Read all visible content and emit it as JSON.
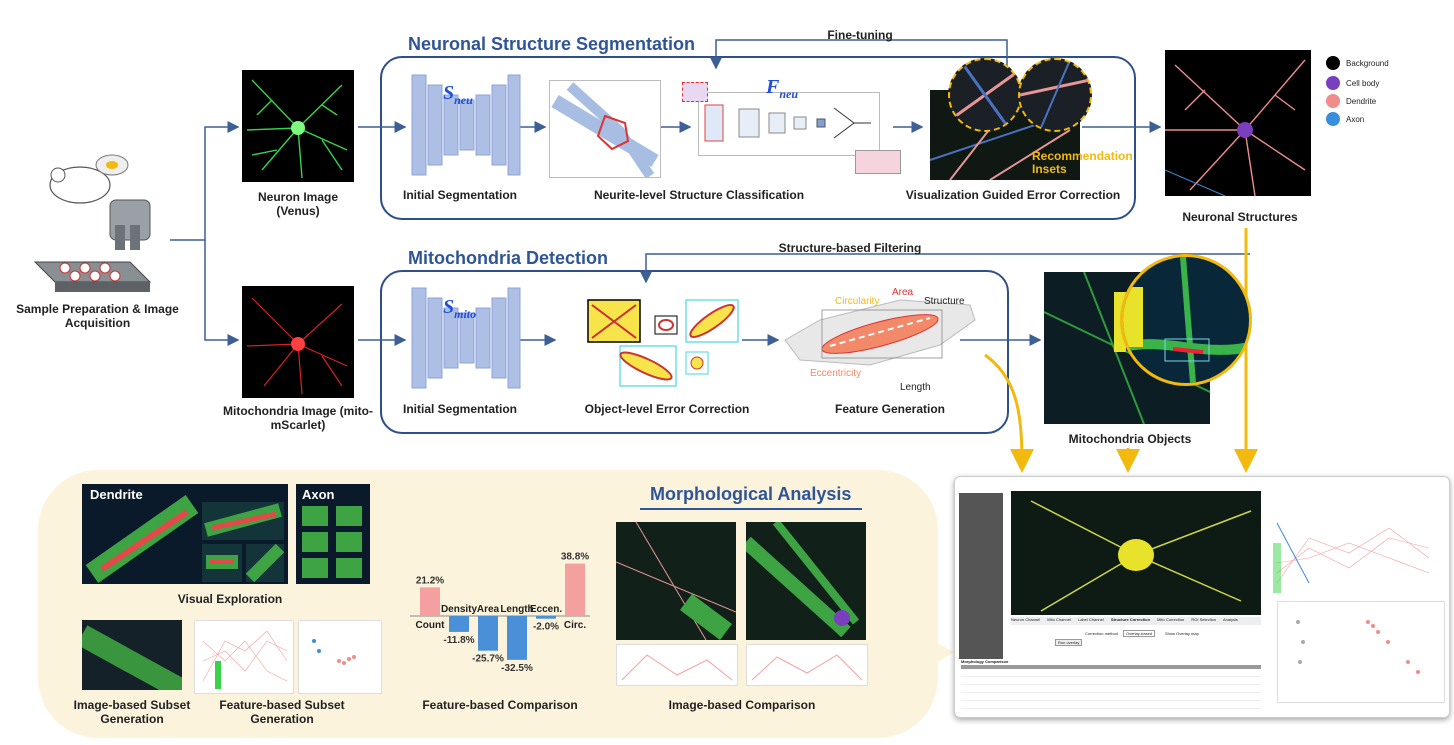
{
  "stage1": {
    "sample_label": "Sample Preparation & Image Acquisition",
    "neuron_image_label": "Neuron Image (Venus)",
    "mito_image_label": "Mitochondria Image (mito-mScarlet)"
  },
  "pipeline_top": {
    "title": "Neuronal Structure Segmentation",
    "feedback_label": "Fine-tuning",
    "model_symbol": "S",
    "model_sub": "neu",
    "classifier_symbol": "F",
    "classifier_sub": "neu",
    "step1": "Initial Segmentation",
    "step2": "Neurite-level Structure Classification",
    "step3": "Visualization Guided Error Correction",
    "callout": "Recommendation Insets"
  },
  "pipeline_bottom": {
    "title": "Mitochondria Detection",
    "feedback_label": "Structure-based Filtering",
    "model_symbol": "S",
    "model_sub": "mito",
    "step1": "Initial Segmentation",
    "step2": "Object-level Error Correction",
    "step3": "Feature Generation",
    "feature_labels": {
      "circularity": "Circularity",
      "area": "Area",
      "structure": "Structure",
      "eccentricity": "Eccentricity",
      "length": "Length"
    }
  },
  "outputs": {
    "structures_label": "Neuronal Structures",
    "mito_objects_label": "Mitochondria Objects",
    "legend": [
      {
        "label": "Background",
        "color": "#000000"
      },
      {
        "label": "Cell body",
        "color": "#7a3fbf"
      },
      {
        "label": "Dendrite",
        "color": "#f08c8c"
      },
      {
        "label": "Axon",
        "color": "#3a8fdc"
      }
    ]
  },
  "analysis": {
    "title": "Morphological Analysis",
    "dendrite_label": "Dendrite",
    "axon_label": "Axon",
    "visual_exploration": "Visual Exploration",
    "image_subset": "Image-based Subset Generation",
    "feature_subset": "Feature-based Subset Generation",
    "feature_comparison": "Feature-based Comparison",
    "image_comparison": "Image-based Comparison"
  },
  "chart_data": {
    "type": "bar",
    "categories": [
      "Count",
      "Density",
      "Area",
      "Length",
      "Eccen.",
      "Circ."
    ],
    "values": [
      21.2,
      -11.8,
      -25.7,
      -32.5,
      -2.0,
      38.8
    ],
    "value_labels": [
      "21.2%",
      "-11.8%",
      "-25.7%",
      "-32.5%",
      "-2.0%",
      "38.8%"
    ],
    "colors": {
      "positive": "#f4a0a0",
      "negative": "#4a90d9"
    },
    "title": "",
    "xlabel": "",
    "ylabel": "",
    "ylim": [
      -40,
      45
    ]
  },
  "interface": {
    "tabs": [
      "Neuron Channel",
      "Mito Channel",
      "Label Channel",
      "Structure Correction",
      "Mito Correction",
      "ROI Selection",
      "Analysis"
    ],
    "bottom_title": "Morphology Comparison",
    "correction_method_label": "Correction method",
    "correction_method_value": "Overlay-based",
    "show_overlay": "Show Overlay map",
    "run_button": "Run overlay"
  },
  "colors": {
    "panel_border": "#2f4f8a",
    "title_blue": "#2f5597",
    "arrow_blue": "#3d5f96",
    "arrow_gold": "#f2b90f",
    "analysis_bg": "#fbf3dc"
  }
}
